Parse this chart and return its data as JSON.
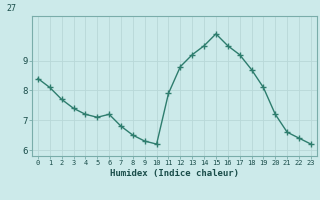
{
  "title": "",
  "xlabel": "Humidex (Indice chaleur)",
  "ylabel": "",
  "x_values": [
    0,
    1,
    2,
    3,
    4,
    5,
    6,
    7,
    8,
    9,
    10,
    11,
    12,
    13,
    14,
    15,
    16,
    17,
    18,
    19,
    20,
    21,
    22,
    23
  ],
  "y_values": [
    8.4,
    8.1,
    7.7,
    7.4,
    7.2,
    7.1,
    7.2,
    6.8,
    6.5,
    6.3,
    6.2,
    7.9,
    8.8,
    9.2,
    9.5,
    9.9,
    9.5,
    9.2,
    8.7,
    8.1,
    7.2,
    6.6,
    6.4,
    6.2
  ],
  "line_color": "#2e7d6e",
  "marker_color": "#2e7d6e",
  "bg_color": "#cceaea",
  "grid_color_major": "#b8d8d8",
  "grid_color_minor": "#d0e8e8",
  "axis_label_color": "#1a4d4a",
  "tick_label_color": "#1a4d4a",
  "xlim": [
    -0.5,
    23.5
  ],
  "ylim": [
    5.8,
    10.5
  ],
  "yticks": [
    6,
    7,
    8,
    9
  ],
  "xticks": [
    0,
    1,
    2,
    3,
    4,
    5,
    6,
    7,
    8,
    9,
    10,
    11,
    12,
    13,
    14,
    15,
    16,
    17,
    18,
    19,
    20,
    21,
    22,
    23
  ],
  "linewidth": 1.0,
  "markersize": 2.5,
  "top_label": "27"
}
